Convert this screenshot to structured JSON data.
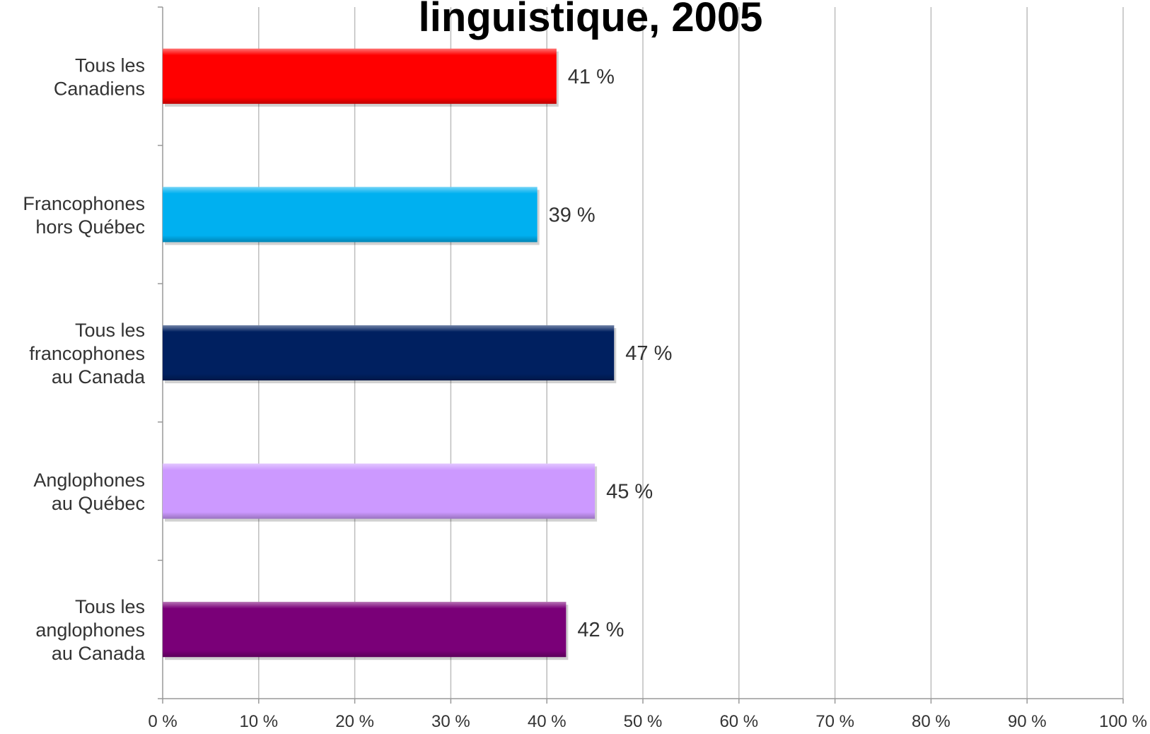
{
  "chart_data": {
    "type": "bar",
    "orientation": "horizontal",
    "title": "linguistique, 2005",
    "categories": [
      [
        "Tous les",
        "Canadiens"
      ],
      [
        "Francophones",
        "hors Québec"
      ],
      [
        "Tous les",
        "francophones",
        "au Canada"
      ],
      [
        "Anglophones",
        "au Québec"
      ],
      [
        "Tous les",
        "anglophones",
        "au Canada"
      ]
    ],
    "values": [
      41,
      39,
      47,
      45,
      42
    ],
    "value_labels": [
      "41 %",
      "39 %",
      "47 %",
      "45 %",
      "42 %"
    ],
    "bar_colors": [
      "#ff0000",
      "#00b0f0",
      "#002060",
      "#cc99ff",
      "#7a0078"
    ],
    "xlim": [
      0,
      100
    ],
    "x_ticks": [
      0,
      10,
      20,
      30,
      40,
      50,
      60,
      70,
      80,
      90,
      100
    ],
    "x_tick_labels": [
      "0 %",
      "10 %",
      "20 %",
      "30 %",
      "40 %",
      "50 %",
      "60 %",
      "70 %",
      "80 %",
      "90 %",
      "100 %"
    ],
    "grid": "vertical",
    "legend": "none"
  }
}
